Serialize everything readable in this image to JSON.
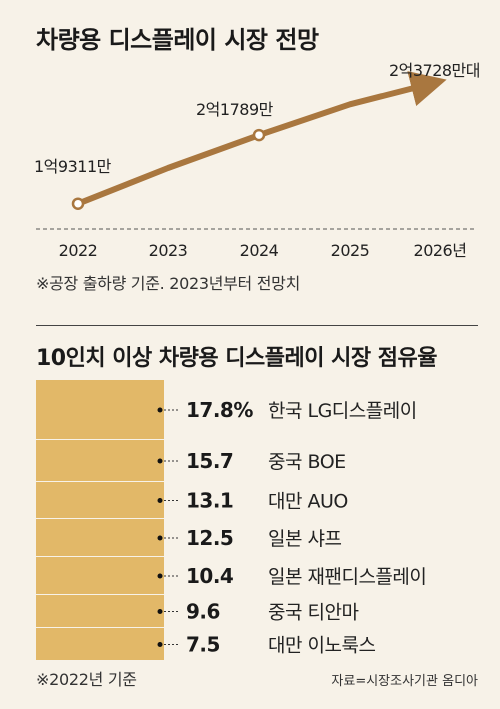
{
  "titles": {
    "outlook": "차량용 디스플레이 시장 전망",
    "share": "10인치 이상 차량용 디스플레이 시장 점유율"
  },
  "notes": {
    "outlook": "※공장 출하량 기준. 2023년부터 전망치",
    "share": "※2022년 기준",
    "source": "자료=시장조사기관 옴디아"
  },
  "colors": {
    "line": "#a9773f",
    "bar": "#e2b868",
    "axis": "#555555",
    "dot_fill": "#ffffff"
  },
  "chart_data": [
    {
      "type": "line",
      "title": "차량용 디스플레이 시장 전망",
      "x": [
        "2022",
        "2023",
        "2024",
        "2025",
        "2026년"
      ],
      "values": [
        193110000,
        206000000,
        217890000,
        229000000,
        237280000
      ],
      "point_labels": [
        {
          "index": 0,
          "text": "1억9311만"
        },
        {
          "index": 2,
          "text": "2억1789만"
        },
        {
          "index": 4,
          "text": "2억3728만대"
        }
      ],
      "ylim": [
        180000000,
        245000000
      ],
      "grid": false
    },
    {
      "type": "bar",
      "orientation": "horizontal",
      "title": "10인치 이상 차량용 디스플레이 시장 점유율",
      "categories": [
        "한국 LG디스플레이",
        "중국 BOE",
        "대만 AUO",
        "일본 샤프",
        "일본 재팬디스플레이",
        "중국 티안마",
        "대만 이노룩스"
      ],
      "values": [
        17.8,
        15.7,
        13.1,
        12.5,
        10.4,
        9.6,
        7.5
      ],
      "value_labels": [
        "17.8%",
        "15.7",
        "13.1",
        "12.5",
        "10.4",
        "9.6",
        "7.5"
      ],
      "grid": false
    }
  ]
}
